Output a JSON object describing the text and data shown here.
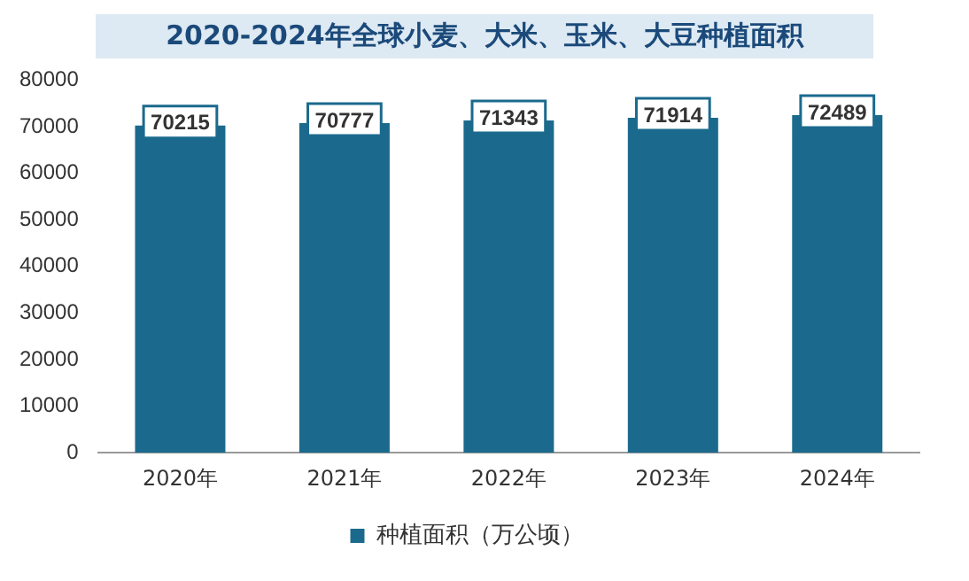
{
  "chart_data": {
    "type": "bar",
    "title": "2020-2024年全球小麦、大米、玉米、大豆种植面积",
    "categories": [
      "2020年",
      "2021年",
      "2022年",
      "2023年",
      "2024年"
    ],
    "series": [
      {
        "name": "种植面积（万公顷）",
        "color": "#1b6a8d",
        "values": [
          70215,
          70777,
          71343,
          71914,
          72489
        ]
      }
    ],
    "ylim": [
      0,
      80000
    ],
    "yticks": [
      0,
      10000,
      20000,
      30000,
      40000,
      50000,
      60000,
      70000,
      80000
    ],
    "grid": false,
    "legend": "bottom",
    "data_labels": true
  }
}
